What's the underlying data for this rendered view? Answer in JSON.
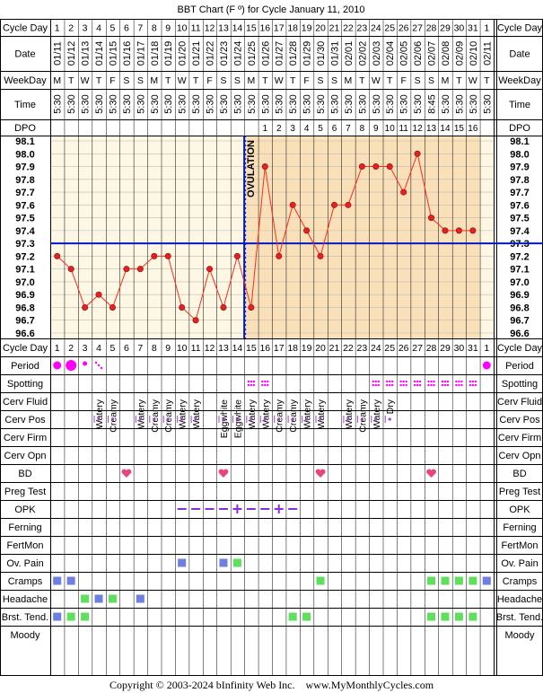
{
  "title": "BBT Chart (F º) for Cycle January 11, 2010",
  "copyright": "Copyright © 2003-2024 bInfinity Web Inc.    www.MyMonthlyCycles.com",
  "colors": {
    "plot_pre": "#fdf7e3",
    "plot_post": "#fae0b8",
    "data_line": "#ff2a1a",
    "data_point": "#e42020",
    "coverline": "#0018c8",
    "ovulation_line": "#0018c8",
    "pink_mark": "#ff00ff",
    "cervpos_mark": "#9a44c8",
    "opk_mark": "#8a2be2",
    "blue_square": "#6d7fe0",
    "green_square": "#5ee05e",
    "heart": "#e8467a",
    "grid": "#000000"
  },
  "labels": {
    "cycle_day": "Cycle Day",
    "date": "Date",
    "weekday": "WeekDay",
    "time": "Time",
    "dpo": "DPO",
    "ovulation": "OVULATION"
  },
  "days": [
    {
      "cd": "1",
      "date": "01/11",
      "wd": "M",
      "time": "5:30"
    },
    {
      "cd": "2",
      "date": "01/12",
      "wd": "T",
      "time": "5:30"
    },
    {
      "cd": "3",
      "date": "01/13",
      "wd": "W",
      "time": "5:30"
    },
    {
      "cd": "4",
      "date": "01/14",
      "wd": "T",
      "time": "5:30"
    },
    {
      "cd": "5",
      "date": "01/15",
      "wd": "F",
      "time": "5:30"
    },
    {
      "cd": "6",
      "date": "01/16",
      "wd": "S",
      "time": "5:30"
    },
    {
      "cd": "7",
      "date": "01/17",
      "wd": "S",
      "time": "5:30"
    },
    {
      "cd": "8",
      "date": "01/18",
      "wd": "M",
      "time": "5:30"
    },
    {
      "cd": "9",
      "date": "01/19",
      "wd": "T",
      "time": "5:30"
    },
    {
      "cd": "10",
      "date": "01/20",
      "wd": "W",
      "time": "5:30"
    },
    {
      "cd": "11",
      "date": "01/21",
      "wd": "T",
      "time": "5:30"
    },
    {
      "cd": "12",
      "date": "01/22",
      "wd": "F",
      "time": "5:30"
    },
    {
      "cd": "13",
      "date": "01/23",
      "wd": "S",
      "time": "5:30"
    },
    {
      "cd": "14",
      "date": "01/24",
      "wd": "S",
      "time": "5:30"
    },
    {
      "cd": "15",
      "date": "01/25",
      "wd": "M",
      "time": "5:30"
    },
    {
      "cd": "16",
      "date": "01/26",
      "wd": "T",
      "time": "5:30"
    },
    {
      "cd": "17",
      "date": "01/27",
      "wd": "W",
      "time": "5:30"
    },
    {
      "cd": "18",
      "date": "01/28",
      "wd": "T",
      "time": "5:30"
    },
    {
      "cd": "19",
      "date": "01/29",
      "wd": "F",
      "time": "5:30"
    },
    {
      "cd": "20",
      "date": "01/30",
      "wd": "S",
      "time": "5:30"
    },
    {
      "cd": "21",
      "date": "01/31",
      "wd": "S",
      "time": "5:30"
    },
    {
      "cd": "22",
      "date": "02/01",
      "wd": "M",
      "time": "5:30"
    },
    {
      "cd": "23",
      "date": "02/02",
      "wd": "T",
      "time": "5:30"
    },
    {
      "cd": "24",
      "date": "02/03",
      "wd": "W",
      "time": "5:30"
    },
    {
      "cd": "25",
      "date": "02/04",
      "wd": "T",
      "time": "5:30"
    },
    {
      "cd": "26",
      "date": "02/05",
      "wd": "F",
      "time": "5:30"
    },
    {
      "cd": "27",
      "date": "02/06",
      "wd": "S",
      "time": "5:30"
    },
    {
      "cd": "28",
      "date": "02/07",
      "wd": "S",
      "time": "8:45"
    },
    {
      "cd": "29",
      "date": "02/08",
      "wd": "M",
      "time": "5:30"
    },
    {
      "cd": "30",
      "date": "02/09",
      "wd": "T",
      "time": "5:30"
    },
    {
      "cd": "31",
      "date": "02/10",
      "wd": "W",
      "time": "5:30"
    },
    {
      "cd": "1",
      "date": "02/11",
      "wd": "T",
      "time": "5:30"
    }
  ],
  "dpo": [
    "",
    "",
    "",
    "",
    "",
    "",
    "",
    "",
    "",
    "",
    "",
    "",
    "",
    "",
    "",
    "1",
    "2",
    "3",
    "4",
    "5",
    "6",
    "7",
    "8",
    "9",
    "10",
    "11",
    "12",
    "13",
    "14",
    "15",
    "16",
    ""
  ],
  "chart_data": {
    "type": "line",
    "title": "BBT Chart (F º) for Cycle January 11, 2010",
    "xlabel": "Cycle Day",
    "ylabel": "",
    "ylim": [
      96.6,
      98.1
    ],
    "y_ticks": [
      "98.1",
      "98.0",
      "97.9",
      "97.8",
      "97.7",
      "97.6",
      "97.5",
      "97.4",
      "97.3",
      "97.2",
      "97.1",
      "97.0",
      "96.9",
      "96.8",
      "96.7",
      "96.6"
    ],
    "x": [
      1,
      2,
      3,
      4,
      5,
      6,
      7,
      8,
      9,
      10,
      11,
      12,
      13,
      14,
      15,
      16,
      17,
      18,
      19,
      20,
      21,
      22,
      23,
      24,
      25,
      26,
      27,
      28,
      29,
      30,
      31
    ],
    "temps": [
      97.2,
      97.1,
      96.8,
      96.9,
      96.8,
      97.1,
      97.1,
      97.2,
      97.2,
      96.8,
      96.7,
      97.1,
      96.8,
      97.2,
      96.8,
      97.9,
      97.2,
      97.6,
      97.4,
      97.2,
      97.6,
      97.6,
      97.9,
      97.9,
      97.9,
      97.7,
      98.0,
      97.5,
      97.4,
      97.4,
      97.4
    ],
    "coverline": 97.3,
    "ovulation_day_index": 15,
    "grid": true
  },
  "observations": [
    {
      "label": "Cycle Day",
      "kind": "cycleday"
    },
    {
      "label": "Period",
      "kind": "period",
      "marks": {
        "1": "big",
        "2": "huge",
        "3": "small",
        "4": "spot"
      },
      "marks_end": "big"
    },
    {
      "label": "Spotting",
      "kind": "spotting",
      "days": [
        15,
        16,
        24,
        25,
        26,
        27,
        28,
        29,
        30,
        31
      ]
    },
    {
      "label": "Cerv Fluid",
      "kind": "text",
      "values": {
        "4": "Watery",
        "5": "Creamy",
        "7": "Watery",
        "8": "Creamy",
        "9": "Creamy",
        "10": "Watery",
        "11": "Watery",
        "13": "Eggwhite",
        "14": "Eggwhite",
        "15": "Watery",
        "16": "Watery",
        "17": "Creamy",
        "18": "Creamy",
        "19": "Watery",
        "20": "Watery",
        "22": "Watery",
        "23": "Creamy",
        "24": "Watery",
        "25": "Dry"
      }
    },
    {
      "label": "Cerv Pos",
      "kind": "cervpos",
      "days": [
        4,
        5,
        7,
        8,
        9,
        10,
        11,
        13,
        14,
        15,
        16,
        17,
        18,
        19,
        20,
        22,
        23,
        24,
        25
      ]
    },
    {
      "label": "Cerv Firm",
      "kind": "empty"
    },
    {
      "label": "Cerv Opn",
      "kind": "empty"
    },
    {
      "label": "BD",
      "kind": "heart",
      "days": [
        6,
        13,
        20,
        28
      ]
    },
    {
      "label": "Preg Test",
      "kind": "empty"
    },
    {
      "label": "OPK",
      "kind": "opk",
      "values": {
        "10": "neg",
        "11": "neg",
        "12": "neg",
        "13": "neg",
        "14": "pos",
        "15": "neg",
        "16": "neg",
        "17": "pos",
        "18": "neg"
      }
    },
    {
      "label": "Ferning",
      "kind": "empty"
    },
    {
      "label": "FertMon",
      "kind": "empty"
    },
    {
      "label": "Ov. Pain",
      "kind": "square",
      "blue": [
        10,
        13
      ],
      "green": [
        14
      ]
    },
    {
      "label": "Cramps",
      "kind": "square",
      "blue": [
        1,
        2,
        32
      ],
      "green": [
        20,
        28,
        29,
        30,
        31
      ]
    },
    {
      "label": "Headache",
      "kind": "square",
      "blue": [
        4,
        7
      ],
      "green": [
        3,
        5
      ]
    },
    {
      "label": "Brst. Tend.",
      "kind": "square",
      "blue": [
        1
      ],
      "green": [
        2,
        3,
        18,
        19,
        28,
        29,
        30,
        31
      ]
    },
    {
      "label": "Moody",
      "kind": "empty"
    }
  ]
}
